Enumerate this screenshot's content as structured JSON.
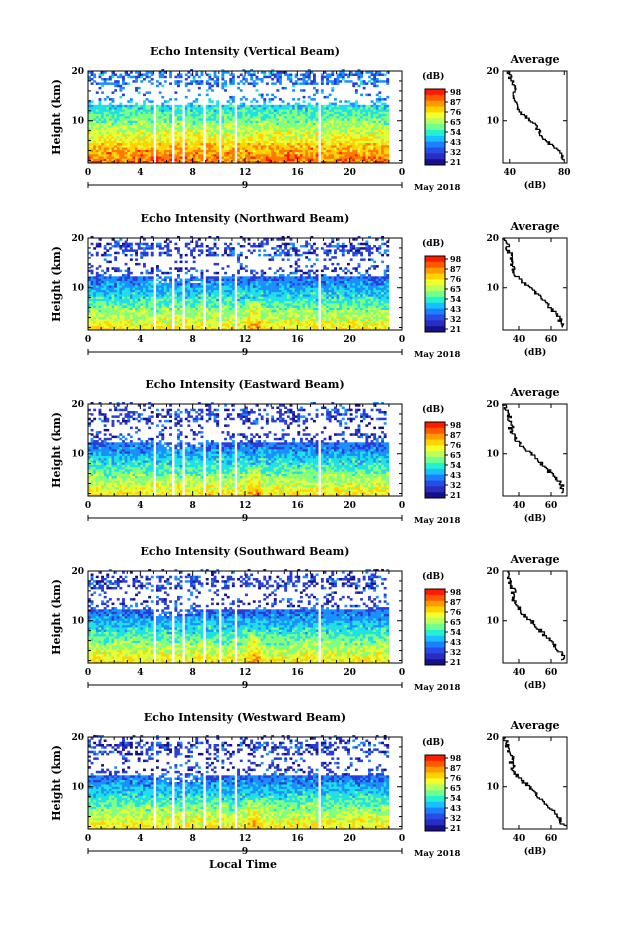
{
  "chart_data": [
    {
      "type": "heatmap",
      "title": "Echo Intensity (Vertical Beam)",
      "ylabel": "Height (km)",
      "x_ticks": [
        "0",
        "4",
        "8",
        "12",
        "16",
        "20",
        "0"
      ],
      "y_ticks": [
        "20",
        "10"
      ],
      "xlim": [
        0,
        24
      ],
      "ylim": [
        1.5,
        20
      ],
      "colorbar": {
        "unit": "(dB)",
        "labels": [
          "98",
          "87",
          "76",
          "65",
          "54",
          "43",
          "32",
          "21"
        ]
      },
      "day_label": "9",
      "month_label": "May 2018",
      "average_profile": {
        "title": "Average",
        "xlabel": "(dB)",
        "x_ticks": [
          "40",
          "80"
        ],
        "y_ticks": [
          "20",
          "10"
        ],
        "xlim": [
          35,
          82
        ],
        "height_km": [
          2,
          3,
          4,
          5,
          6,
          7,
          8,
          9,
          10,
          11,
          12,
          13,
          14,
          15,
          16,
          17,
          18,
          19,
          20
        ],
        "value_db": [
          80,
          78,
          75,
          70,
          66,
          63,
          61,
          59,
          55,
          50,
          47,
          45,
          44,
          43,
          44,
          43,
          41,
          40,
          39
        ]
      }
    },
    {
      "type": "heatmap",
      "title": "Echo Intensity (Northward Beam)",
      "ylabel": "Height (km)",
      "x_ticks": [
        "0",
        "4",
        "8",
        "12",
        "16",
        "20",
        "0"
      ],
      "y_ticks": [
        "20",
        "10"
      ],
      "xlim": [
        0,
        24
      ],
      "ylim": [
        1.5,
        20
      ],
      "colorbar": {
        "unit": "(dB)",
        "labels": [
          "98",
          "87",
          "76",
          "65",
          "54",
          "43",
          "32",
          "21"
        ]
      },
      "day_label": "9",
      "month_label": "May 2018",
      "average_profile": {
        "title": "Average",
        "xlabel": "(dB)",
        "x_ticks": [
          "40",
          "60"
        ],
        "y_ticks": [
          "20",
          "10"
        ],
        "xlim": [
          30,
          70
        ],
        "height_km": [
          2,
          3,
          4,
          5,
          6,
          7,
          8,
          9,
          10,
          11,
          12,
          13,
          14,
          15,
          16,
          17,
          18,
          19,
          20
        ],
        "value_db": [
          68,
          66,
          65,
          62,
          59,
          56,
          53,
          50,
          46,
          42,
          39,
          37,
          36,
          35,
          36,
          34,
          33,
          32,
          31
        ]
      }
    },
    {
      "type": "heatmap",
      "title": "Echo Intensity (Eastward Beam)",
      "ylabel": "Height (km)",
      "x_ticks": [
        "0",
        "4",
        "8",
        "12",
        "16",
        "20",
        "0"
      ],
      "y_ticks": [
        "20",
        "10"
      ],
      "xlim": [
        0,
        24
      ],
      "ylim": [
        1.5,
        20
      ],
      "colorbar": {
        "unit": "(dB)",
        "labels": [
          "98",
          "87",
          "76",
          "65",
          "54",
          "43",
          "32",
          "21"
        ]
      },
      "day_label": "9",
      "month_label": "May 2018",
      "average_profile": {
        "title": "Average",
        "xlabel": "(dB)",
        "x_ticks": [
          "40",
          "60"
        ],
        "y_ticks": [
          "20",
          "10"
        ],
        "xlim": [
          30,
          70
        ],
        "height_km": [
          2,
          3,
          4,
          5,
          6,
          7,
          8,
          9,
          10,
          11,
          12,
          13,
          14,
          15,
          16,
          17,
          18,
          19,
          20
        ],
        "value_db": [
          68,
          67,
          66,
          63,
          60,
          57,
          54,
          51,
          47,
          43,
          40,
          38,
          36,
          35,
          36,
          34,
          33,
          32,
          31
        ]
      }
    },
    {
      "type": "heatmap",
      "title": "Echo Intensity (Southward Beam)",
      "ylabel": "Height (km)",
      "x_ticks": [
        "0",
        "4",
        "8",
        "12",
        "16",
        "20",
        "0"
      ],
      "y_ticks": [
        "20",
        "10"
      ],
      "xlim": [
        0,
        24
      ],
      "ylim": [
        1.5,
        20
      ],
      "colorbar": {
        "unit": "(dB)",
        "labels": [
          "98",
          "87",
          "76",
          "65",
          "54",
          "43",
          "32",
          "21"
        ]
      },
      "day_label": "9",
      "month_label": "May 2018",
      "average_profile": {
        "title": "Average",
        "xlabel": "(dB)",
        "x_ticks": [
          "40",
          "60"
        ],
        "y_ticks": [
          "20",
          "10"
        ],
        "xlim": [
          30,
          70
        ],
        "height_km": [
          2,
          3,
          4,
          5,
          6,
          7,
          8,
          9,
          10,
          11,
          12,
          13,
          14,
          15,
          16,
          17,
          18,
          19,
          20
        ],
        "value_db": [
          68,
          67,
          65,
          62,
          59,
          56,
          53,
          50,
          47,
          43,
          41,
          39,
          37,
          36,
          37,
          35,
          34,
          33,
          32
        ]
      }
    },
    {
      "type": "heatmap",
      "title": "Echo Intensity (Westward Beam)",
      "ylabel": "Height (km)",
      "xlabel": "Local Time",
      "x_ticks": [
        "0",
        "4",
        "8",
        "12",
        "16",
        "20",
        "0"
      ],
      "y_ticks": [
        "20",
        "10"
      ],
      "xlim": [
        0,
        24
      ],
      "ylim": [
        1.5,
        20
      ],
      "colorbar": {
        "unit": "(dB)",
        "labels": [
          "98",
          "87",
          "76",
          "65",
          "54",
          "43",
          "32",
          "21"
        ]
      },
      "day_label": "9",
      "month_label": "May 2018",
      "average_profile": {
        "title": "Average",
        "xlabel": "(dB)",
        "x_ticks": [
          "40",
          "60"
        ],
        "y_ticks": [
          "20",
          "10"
        ],
        "xlim": [
          30,
          70
        ],
        "height_km": [
          2,
          3,
          4,
          5,
          6,
          7,
          8,
          9,
          10,
          11,
          12,
          13,
          14,
          15,
          16,
          17,
          18,
          19,
          20
        ],
        "value_db": [
          68,
          66,
          64,
          61,
          58,
          55,
          52,
          49,
          46,
          42,
          39,
          37,
          36,
          35,
          36,
          34,
          33,
          32,
          31
        ]
      }
    }
  ],
  "data_gaps_local_time": [
    [
      5.0,
      5.2
    ],
    [
      6.35,
      6.55
    ],
    [
      7.3,
      7.5
    ],
    [
      8.8,
      8.95
    ],
    [
      10.0,
      10.2
    ],
    [
      11.1,
      11.3
    ],
    [
      12.1,
      12.25
    ],
    [
      17.3,
      17.45
    ],
    [
      17.6,
      17.75
    ]
  ],
  "data_end_local_time": 22.8,
  "colorscale": [
    "#ff1a00",
    "#ff7a00",
    "#ffd200",
    "#e3ff3a",
    "#80ff80",
    "#1ee0e6",
    "#1a90ff",
    "#2a3cd6",
    "#16118a"
  ]
}
